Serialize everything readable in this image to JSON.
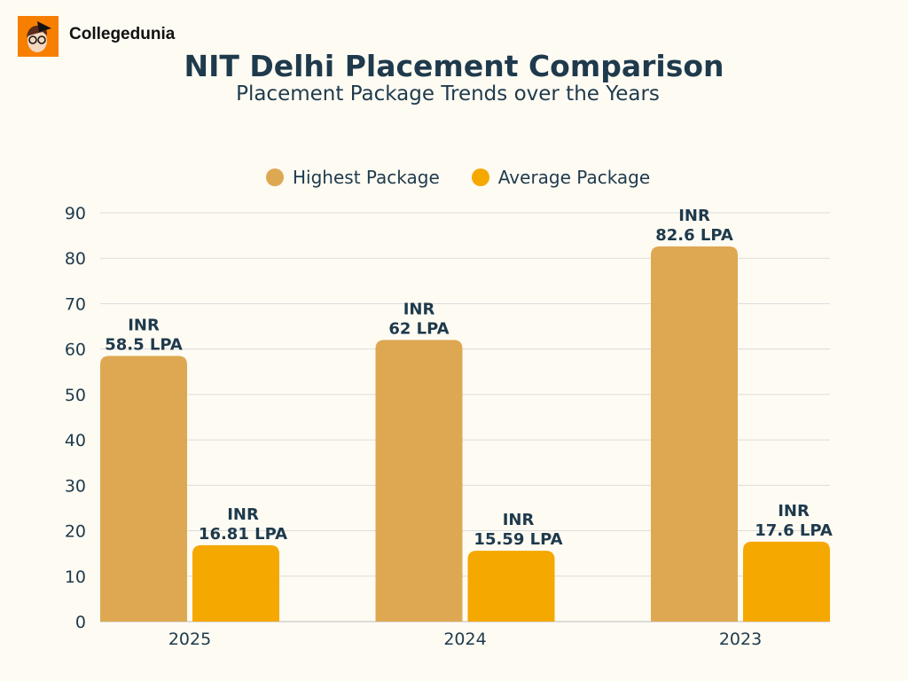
{
  "brand": {
    "name": "Collegedunia"
  },
  "chart_data": {
    "type": "bar",
    "title": "NIT Delhi Placement Comparison",
    "subtitle": "Placement Package Trends over the Years",
    "categories": [
      "2025",
      "2024",
      "2023"
    ],
    "series": [
      {
        "name": "Highest Package",
        "values": [
          58.5,
          62,
          82.6
        ],
        "labels": [
          [
            "INR",
            "58.5 LPA"
          ],
          [
            "INR",
            "62 LPA"
          ],
          [
            "INR",
            "82.6 LPA"
          ]
        ],
        "color": "#dea852"
      },
      {
        "name": "Average Package",
        "values": [
          16.81,
          15.59,
          17.6
        ],
        "labels": [
          [
            "INR",
            "16.81 LPA"
          ],
          [
            "INR",
            "15.59 LPA"
          ],
          [
            "INR",
            "17.6 LPA"
          ]
        ],
        "color": "#f5a800"
      }
    ],
    "ylim": [
      0,
      90
    ],
    "yticks": [
      0,
      10,
      20,
      30,
      40,
      50,
      60,
      70,
      80,
      90
    ],
    "grid": true,
    "legend": "top"
  }
}
